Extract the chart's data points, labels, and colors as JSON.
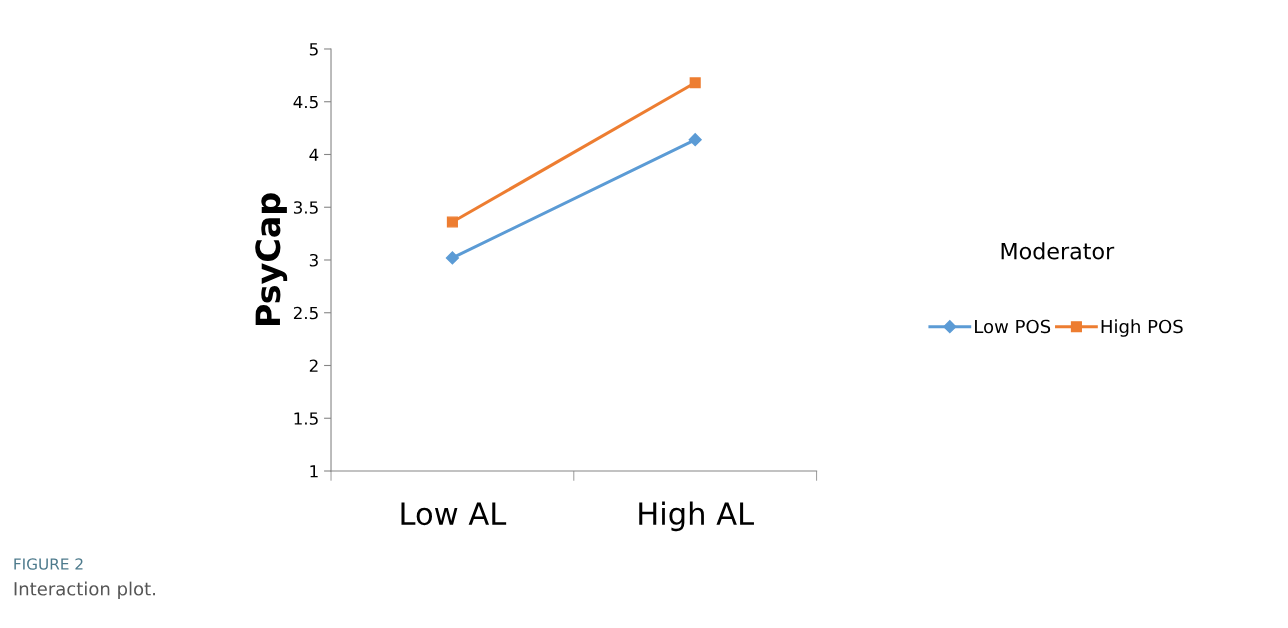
{
  "chart_data": {
    "type": "line",
    "ylabel": "PsyCap",
    "categories": [
      "Low AL",
      "High AL"
    ],
    "series": [
      {
        "name": "Low POS",
        "color": "#5b9bd5",
        "values": [
          3.02,
          4.14
        ],
        "marker": "diamond"
      },
      {
        "name": "High POS",
        "color": "#ed7d31",
        "values": [
          3.36,
          4.68
        ],
        "marker": "square"
      }
    ],
    "ylim": [
      1,
      5
    ],
    "yticks": [
      1,
      1.5,
      2,
      2.5,
      3,
      3.5,
      4,
      4.5,
      5
    ],
    "grid": false,
    "legend": "right",
    "legend_title": "Moderator",
    "line_style": "solid",
    "annotations": [
      "FIGURE 2",
      "Interaction plot."
    ]
  }
}
